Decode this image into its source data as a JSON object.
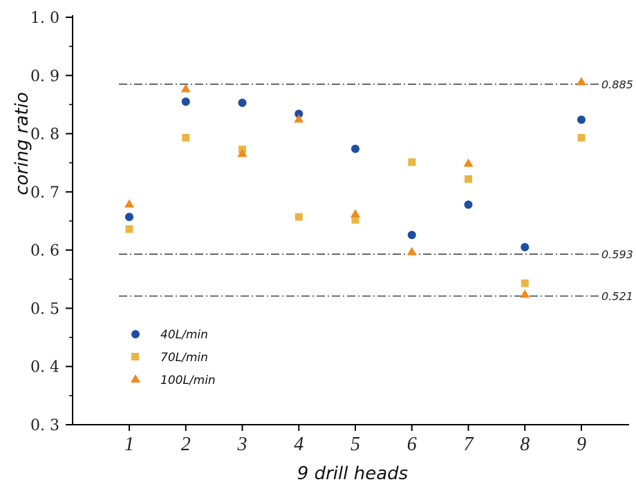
{
  "chart_data": {
    "type": "scatter",
    "xlabel": "9 drill heads",
    "ylabel": "coring ratio",
    "categories": [
      "1",
      "2",
      "3",
      "4",
      "5",
      "6",
      "7",
      "8",
      "9"
    ],
    "ylim": [
      0.3,
      1.0
    ],
    "yticks": [
      "0.3",
      "0.4",
      "0.5",
      "0.6",
      "0.7",
      "0.8",
      "0.9",
      "1.0"
    ],
    "ytick_labels": [
      "0. 3",
      "0. 4",
      "0. 5",
      "0. 6",
      "0. 7",
      "0. 8",
      "0. 9",
      "1. 0"
    ],
    "grid": false,
    "legend_position": "bottom-left",
    "series": [
      {
        "name": "40L/min",
        "marker": "circle",
        "color": "#1f4ea0",
        "values": [
          0.657,
          0.855,
          0.853,
          0.834,
          0.774,
          0.626,
          0.678,
          0.605,
          0.824
        ]
      },
      {
        "name": "70L/min",
        "marker": "square",
        "color": "#eab542",
        "values": [
          0.636,
          0.793,
          0.773,
          0.657,
          0.652,
          0.751,
          0.722,
          0.543,
          0.793
        ]
      },
      {
        "name": "100L/min",
        "marker": "triangle",
        "color": "#f08a1c",
        "values": [
          0.679,
          0.877,
          0.766,
          0.825,
          0.662,
          0.597,
          0.749,
          0.524,
          0.889
        ]
      }
    ],
    "reference_lines": [
      {
        "value": 0.885,
        "label": "0.885"
      },
      {
        "value": 0.593,
        "label": "0.593"
      },
      {
        "value": 0.521,
        "label": "0.521"
      }
    ]
  }
}
